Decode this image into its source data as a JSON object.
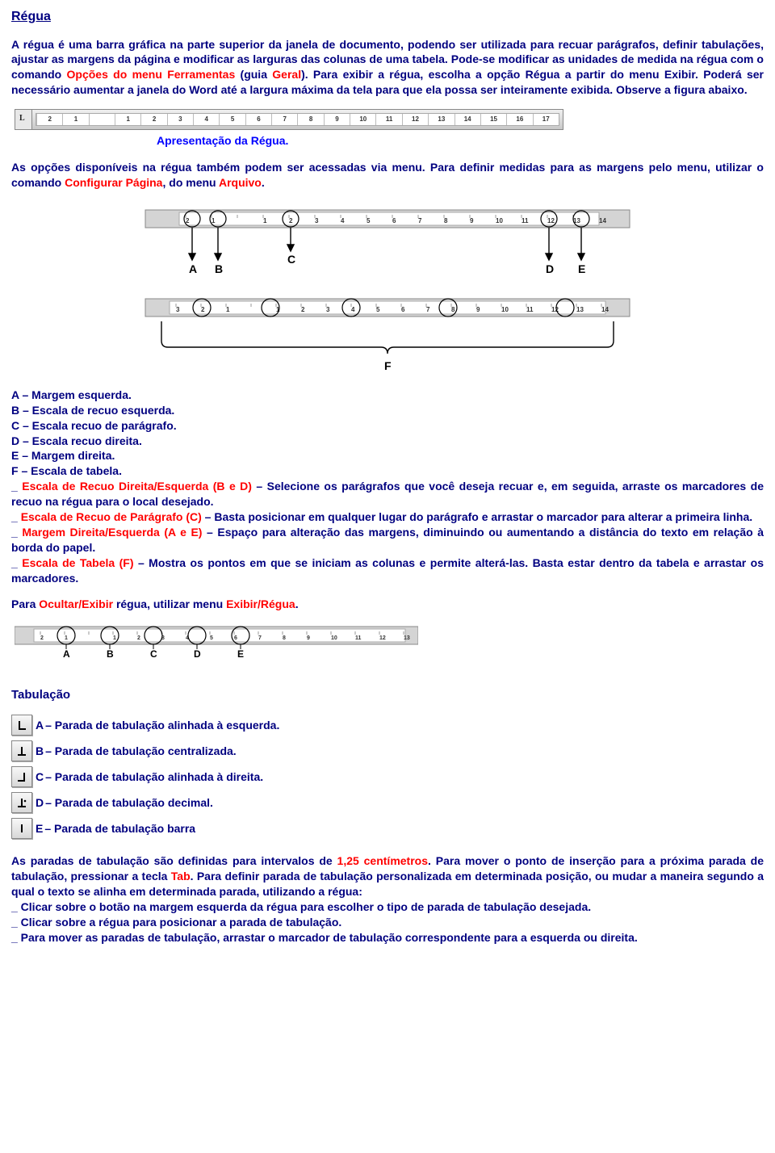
{
  "title": "Régua",
  "p1": {
    "t1": "A régua é uma barra gráfica na parte superior da janela de documento, podendo ser utilizada para recuar parágrafos, definir tabulações, ajustar as margens da página e modificar as larguras das colunas de uma tabela. Pode-se modificar as unidades de medida na régua com o comando ",
    "r1": "Opções do menu Ferramentas",
    "t2": " (guia ",
    "r2": "Geral",
    "t3": "). Para exibir a régua, escolha a opção Régua a partir do menu Exibir. Poderá ser necessário aumentar a janela do Word até a largura máxima da tela para que ela possa ser inteiramente exibida. Observe a figura abaixo."
  },
  "ruler_ticks": [
    "2",
    "1",
    "",
    "1",
    "2",
    "3",
    "4",
    "5",
    "6",
    "7",
    "8",
    "9",
    "10",
    "11",
    "12",
    "13",
    "14",
    "15",
    "16",
    "17"
  ],
  "caption1": "Apresentação da Régua.",
  "p2": {
    "t1": "As opções disponíveis na régua também podem ser acessadas via menu. Para definir medidas para as margens pelo menu, utilizar o comando ",
    "r1": "Configurar Página",
    "t2": ", do menu ",
    "r2": "Arquivo",
    "t3": "."
  },
  "legend": {
    "a": "A – Margem esquerda.",
    "b": "B – Escala de recuo esquerda.",
    "c": "C – Escala recuo de parágrafo.",
    "d": "D – Escala recuo direita.",
    "e": "E – Margem direita.",
    "f": "F – Escala de tabela."
  },
  "desc": {
    "bd_r": "Escala de Recuo Direita/Esquerda (B e D)",
    "bd_t": " – Selecione os parágrafos que você deseja recuar e, em seguida, arraste os marcadores de recuo na régua para o local desejado.",
    "c_r": "Escala de Recuo de Parágrafo (C)",
    "c_t": " – Basta posicionar em qualquer lugar do parágrafo e arrastar o marcador para alterar a primeira linha.",
    "ae_r": "Margem Direita/Esquerda (A e E)",
    "ae_t": " – Espaço para alteração das margens, diminuindo ou aumentando a distância do texto em relação à borda do papel.",
    "f_r": "Escala de Tabela (F)",
    "f_t": " – Mostra os pontos em que se iniciam as colunas e permite alterá-las. Basta estar dentro da tabela e arrastar os marcadores."
  },
  "p3": {
    "t1": "Para ",
    "r1": "Ocultar/Exibir",
    "t2": " régua, utilizar menu ",
    "r2": "Exibir/Régua",
    "t3": "."
  },
  "tab_title": "Tabulação",
  "tabs": {
    "a": {
      "l": "A",
      "t": " – Parada de tabulação alinhada à esquerda."
    },
    "b": {
      "l": "B",
      "t": " – Parada de tabulação centralizada."
    },
    "c": {
      "l": "C",
      "t": " – Parada de tabulação alinhada à direita."
    },
    "d": {
      "l": "D",
      "t": " – Parada de tabulação decimal."
    },
    "e": {
      "l": "E",
      "t": " – Parada de tabulação barra"
    }
  },
  "p4": {
    "t1": "As paradas de tabulação são definidas para intervalos de ",
    "r1": "1,25 centímetros",
    "t2": ". Para mover o ponto de inserção para a próxima parada de tabulação, pressionar a tecla ",
    "r2": "Tab",
    "t3": ". Para definir parada de tabulação personalizada em determinada posição, ou mudar a maneira segundo a qual o texto se alinha em determinada parada, utilizando a régua:"
  },
  "bul": {
    "b1": "_ Clicar sobre o botão na margem esquerda da régua para escolher o tipo de parada de tabulação desejada.",
    "b2": "_ Clicar sobre a régua para posicionar a parada de tabulação.",
    "b3": "_ Para mover as paradas de tabulação, arrastar o marcador de tabulação correspondente para a esquerda ou direita."
  },
  "diagram": {
    "top_ticks": [
      "2",
      "1",
      "",
      "1",
      "2",
      "3",
      "4",
      "5",
      "6",
      "7",
      "8",
      "9",
      "10",
      "11",
      "12",
      "13",
      "14"
    ],
    "bot_ticks": [
      "3",
      "2",
      "1",
      "",
      "1",
      "2",
      "3",
      "4",
      "5",
      "6",
      "7",
      "8",
      "9",
      "10",
      "11",
      "12",
      "13",
      "14"
    ],
    "labels_top": [
      "A",
      "B",
      "C",
      "D",
      "E"
    ],
    "label_bottom": "F",
    "tab_ruler_labels": [
      "A",
      "B",
      "C",
      "D",
      "E"
    ]
  },
  "colors": {
    "navy": "#000080",
    "red": "#ff0000",
    "blue": "#0000ff"
  }
}
